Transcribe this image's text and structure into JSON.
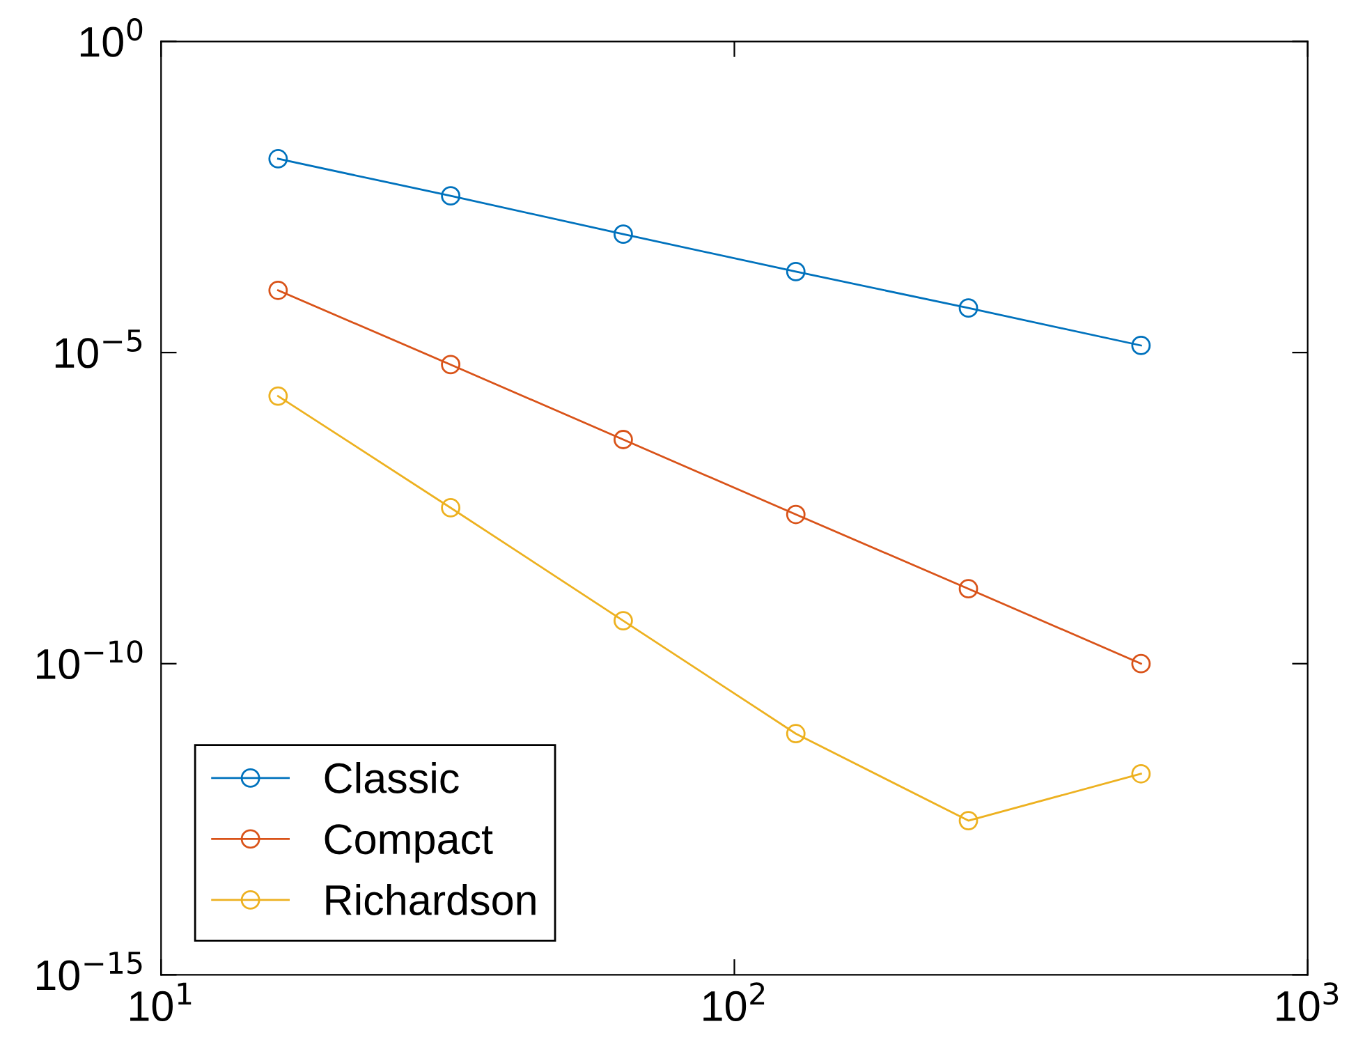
{
  "chart_data": {
    "type": "line",
    "log": "xy",
    "marker": "circle",
    "line_style": "solid",
    "grid": false,
    "legend": "bottom left",
    "x": [
      16,
      32,
      64,
      128,
      256,
      512
    ],
    "xlim": [
      10,
      1000
    ],
    "xticks": [
      {
        "value": 10,
        "label": "10$^{1}$"
      },
      {
        "value": 100,
        "label": "10$^{2}$"
      },
      {
        "value": 1000,
        "label": "10$^{3}$"
      }
    ],
    "ylim": [
      1e-15,
      1
    ],
    "yticks": [
      {
        "value": 1e-15,
        "label": "10$^{−15}$"
      },
      {
        "value": 1e-10,
        "label": "10$^{−10}$"
      },
      {
        "value": 1e-05,
        "label": "10$^{−5}$"
      },
      {
        "value": 1,
        "label": "10$^{0}$"
      }
    ],
    "series": [
      {
        "name": "Classic",
        "color": "#0072bd",
        "values": [
          0.013,
          0.0033,
          0.0008,
          0.0002,
          5.2e-05,
          1.3e-05
        ]
      },
      {
        "name": "Compact",
        "color": "#d95319",
        "values": [
          0.0001,
          6.4e-06,
          4e-07,
          2.5e-08,
          1.6e-09,
          1e-10
        ]
      },
      {
        "name": "Richardson",
        "color": "#edb120",
        "values": [
          2e-06,
          3.2e-08,
          4.9e-10,
          7.5e-12,
          3e-13,
          1.7e-12
        ]
      }
    ]
  }
}
